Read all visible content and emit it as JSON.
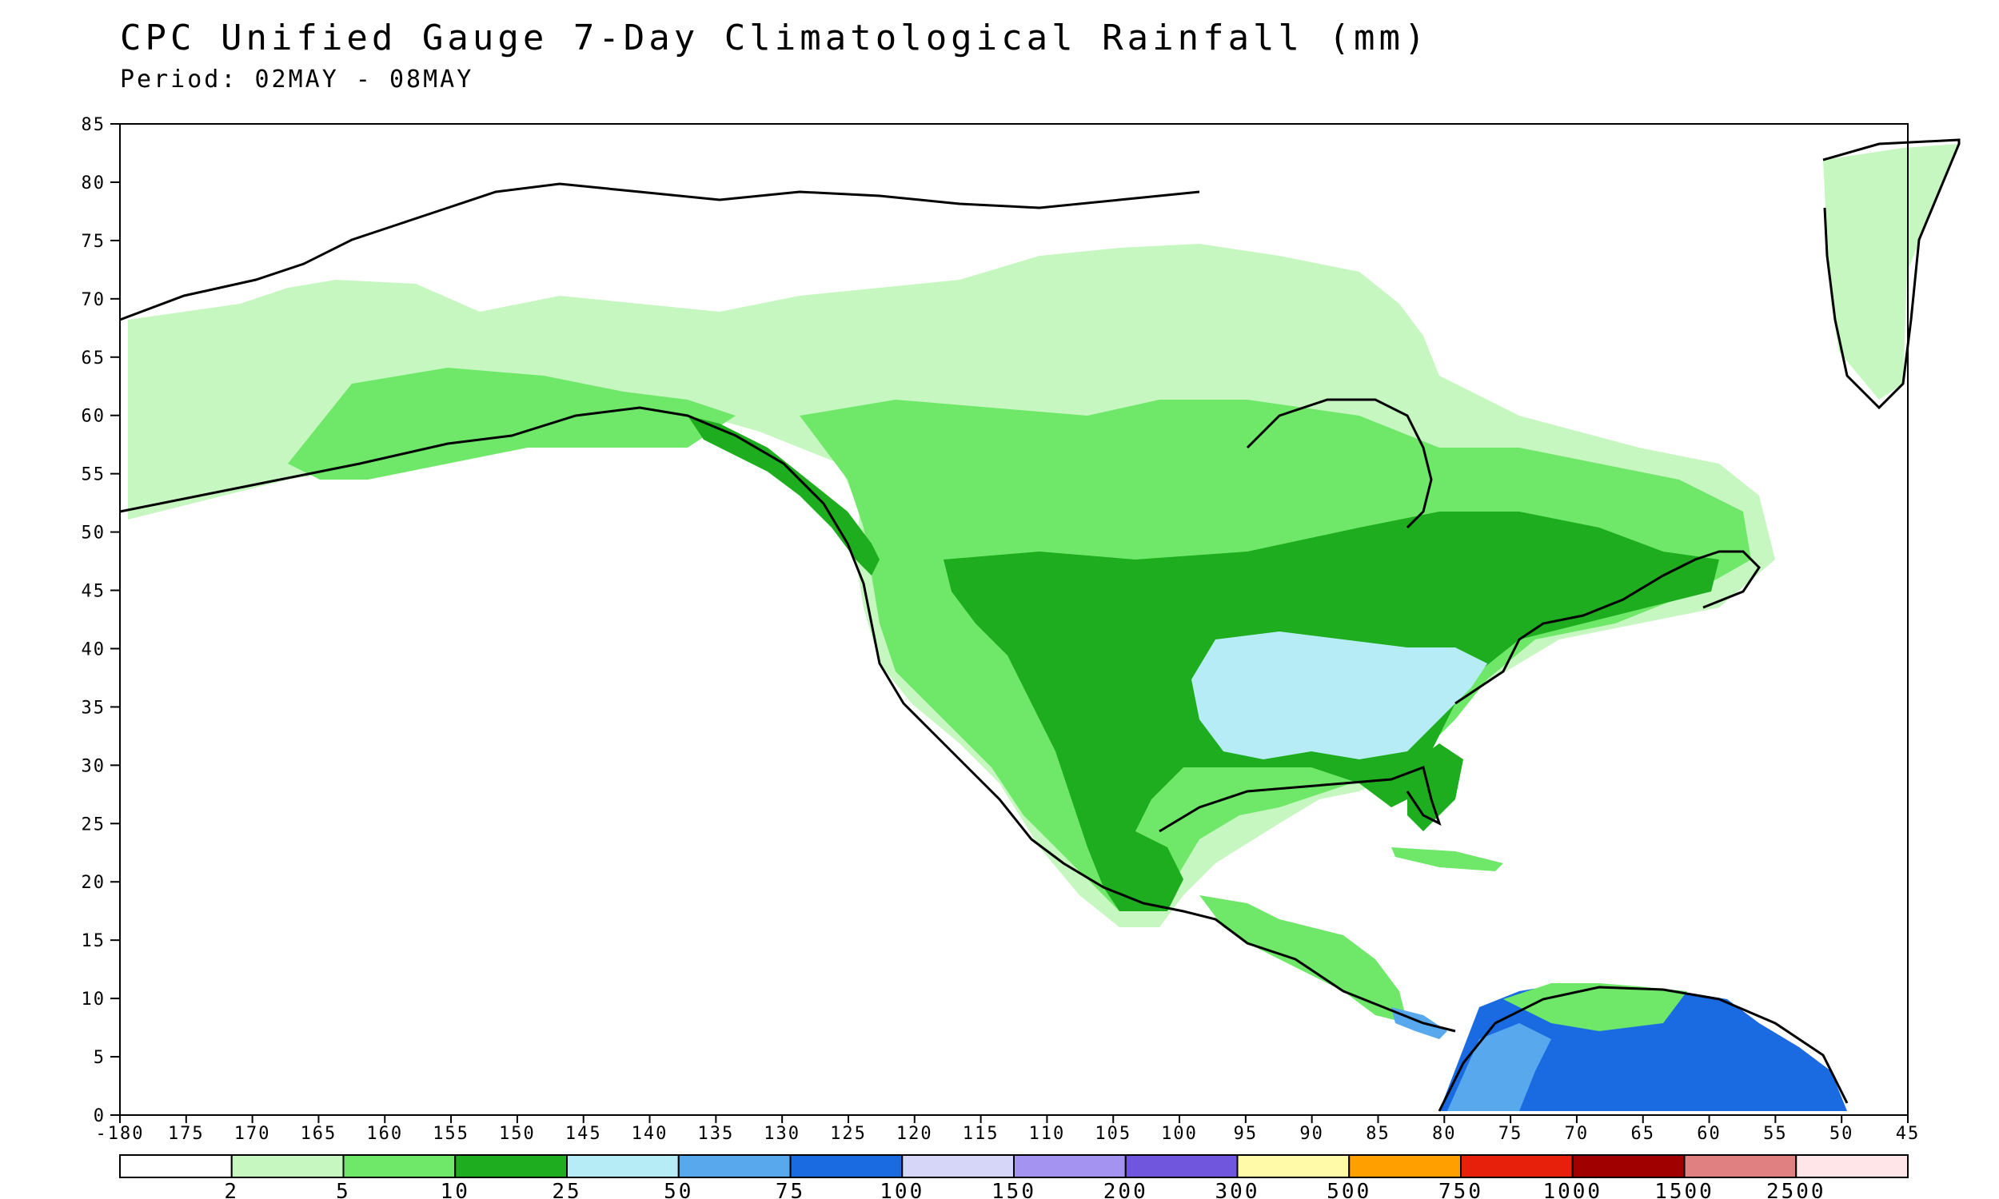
{
  "title": "CPC Unified Gauge 7-Day Climatological Rainfall (mm)",
  "subtitle": "Period: 02MAY - 08MAY",
  "map": {
    "lat_ticks": [
      "85",
      "80",
      "75",
      "70",
      "65",
      "60",
      "55",
      "50",
      "45",
      "40",
      "35",
      "30",
      "25",
      "20",
      "15",
      "10",
      "5",
      "0"
    ],
    "lon_ticks": [
      "-180",
      "175",
      "170",
      "165",
      "160",
      "155",
      "150",
      "145",
      "140",
      "135",
      "130",
      "125",
      "120",
      "115",
      "110",
      "105",
      "100",
      "95",
      "90",
      "85",
      "80",
      "75",
      "70",
      "65",
      "60",
      "55",
      "50",
      "45"
    ],
    "lon_range": [
      -180,
      -45
    ],
    "lat_range": [
      0,
      85
    ]
  },
  "colorbar": {
    "colors": [
      "#ffffff",
      "#c6f7c0",
      "#6fe86a",
      "#1ead1e",
      "#b5ecf5",
      "#58a8ee",
      "#1a6ae2",
      "#d6d6f8",
      "#a593f2",
      "#7055dd",
      "#fffaa8",
      "#ffa000",
      "#e6200a",
      "#a00000",
      "#e08080",
      "#ffe4e8"
    ],
    "labels": [
      "2",
      "5",
      "10",
      "25",
      "50",
      "75",
      "100",
      "150",
      "200",
      "300",
      "500",
      "750",
      "1000",
      "1500",
      "2500"
    ]
  }
}
